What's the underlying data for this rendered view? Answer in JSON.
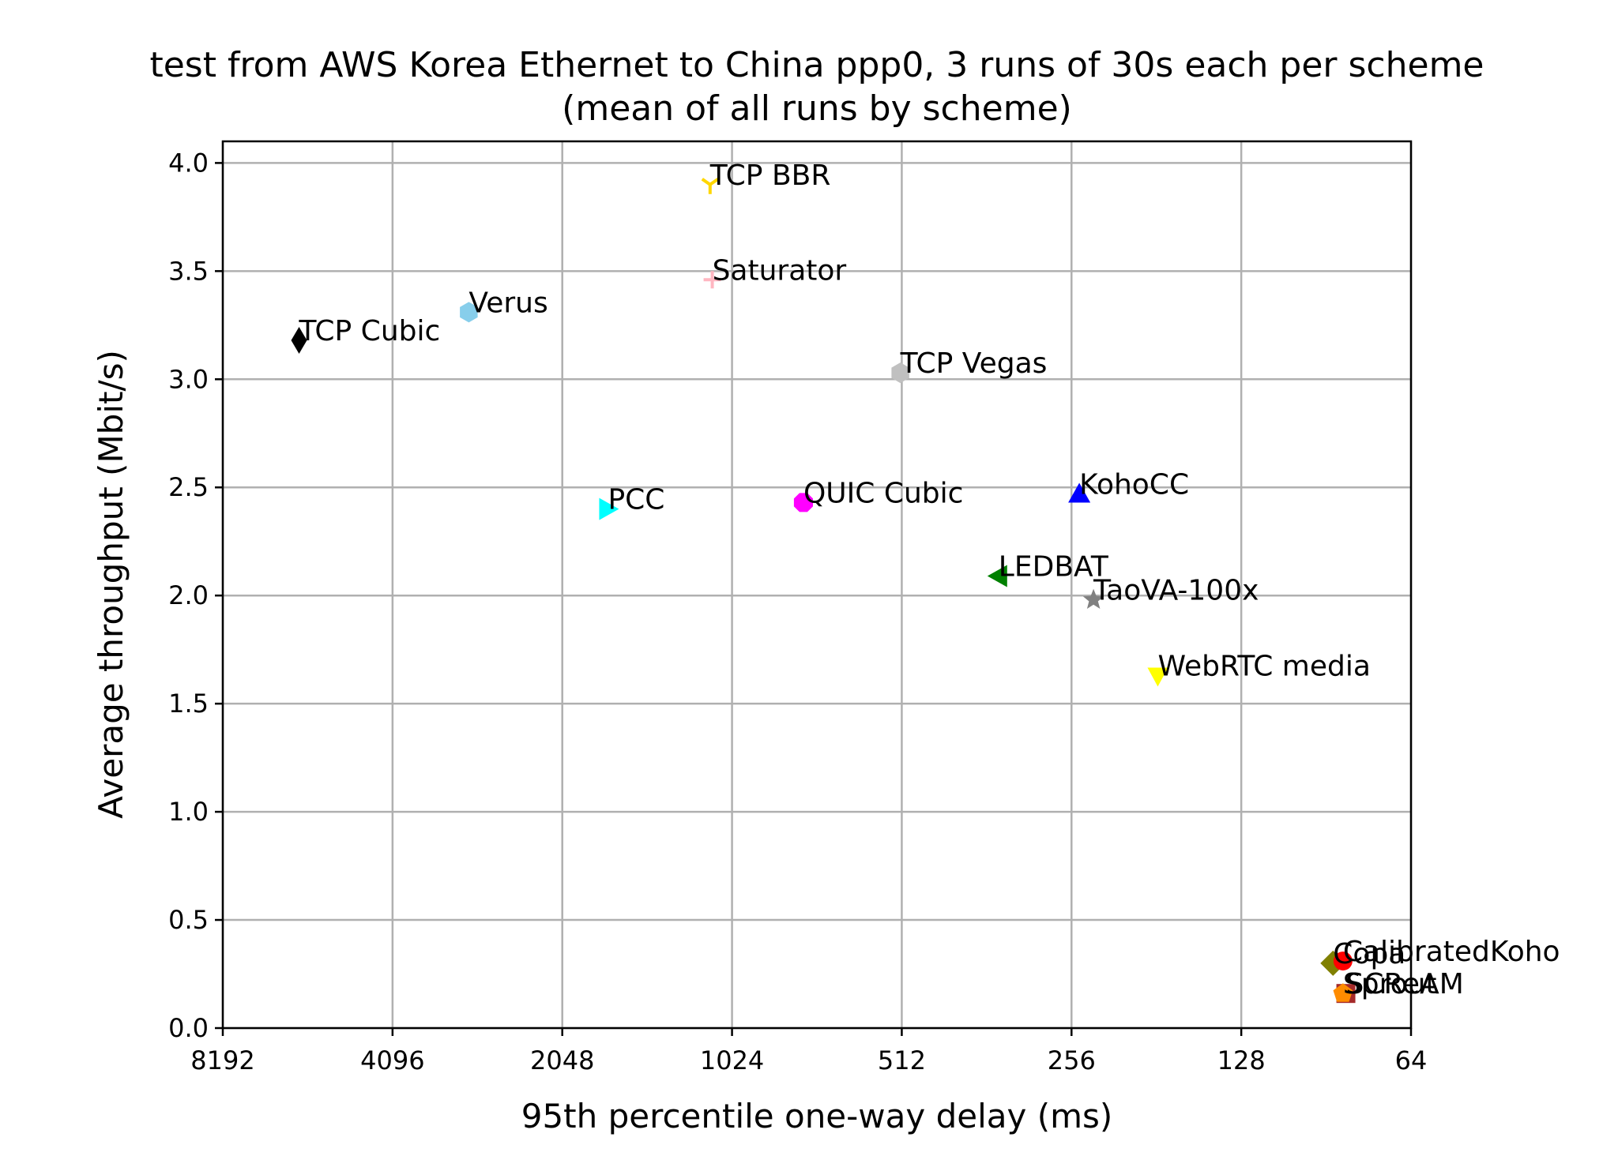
{
  "chart_data": {
    "type": "scatter",
    "title": "test from AWS Korea Ethernet to China ppp0, 3 runs of 30s each per scheme",
    "subtitle": "(mean of all runs by scheme)",
    "xlabel": "95th percentile one-way delay (ms)",
    "ylabel": "Average throughput (Mbit/s)",
    "x_scale": "log2",
    "x_inverted": true,
    "xlim": [
      8192,
      64
    ],
    "ylim": [
      0,
      4.1
    ],
    "xticks": [
      8192,
      4096,
      2048,
      1024,
      512,
      256,
      128,
      64
    ],
    "xtick_labels": [
      "8192",
      "4096",
      "2048",
      "1024",
      "512",
      "256",
      "128",
      "64"
    ],
    "yticks": [
      0,
      0.5,
      1,
      1.5,
      2,
      2.5,
      3,
      3.5,
      4
    ],
    "ytick_labels": [
      "0.0",
      "0.5",
      "1.0",
      "1.5",
      "2.0",
      "2.5",
      "3.0",
      "3.5",
      "4.0"
    ],
    "grid": true,
    "points": [
      {
        "label": "TCP BBR",
        "x": 1120,
        "y": 3.9,
        "marker": "tri_down",
        "color": "#ffd700"
      },
      {
        "label": "Saturator",
        "x": 1110,
        "y": 3.46,
        "marker": "plus",
        "color": "#ffb6c1"
      },
      {
        "label": "Verus",
        "x": 3000,
        "y": 3.31,
        "marker": "hexagon",
        "color": "#87ceeb"
      },
      {
        "label": "TCP Cubic",
        "x": 6000,
        "y": 3.18,
        "marker": "thin_diamond",
        "color": "#000000"
      },
      {
        "label": "TCP Vegas",
        "x": 515,
        "y": 3.03,
        "marker": "hexagon",
        "color": "#c0c0c0"
      },
      {
        "label": "KohoCC",
        "x": 248,
        "y": 2.47,
        "marker": "triangle_up",
        "color": "#0000ff"
      },
      {
        "label": "PCC",
        "x": 1700,
        "y": 2.4,
        "marker": "triangle_right",
        "color": "#00ffff"
      },
      {
        "label": "QUIC Cubic",
        "x": 765,
        "y": 2.43,
        "marker": "octagon",
        "color": "#ff00ff"
      },
      {
        "label": "LEDBAT",
        "x": 345,
        "y": 2.09,
        "marker": "triangle_left",
        "color": "#008000"
      },
      {
        "label": "TaoVA-100x",
        "x": 234,
        "y": 1.98,
        "marker": "star",
        "color": "#808080"
      },
      {
        "label": "WebRTC media",
        "x": 180,
        "y": 1.63,
        "marker": "triangle_down",
        "color": "#ffff00"
      },
      {
        "label": "Copa",
        "x": 88,
        "y": 0.3,
        "marker": "diamond",
        "color": "#808000"
      },
      {
        "label": "CalibratedKoho",
        "x": 84.5,
        "y": 0.31,
        "marker": "circle",
        "color": "#ff0000"
      },
      {
        "label": "SCReAM",
        "x": 83.5,
        "y": 0.16,
        "marker": "square",
        "color": "#a52a2a"
      },
      {
        "label": "Sprout",
        "x": 84.5,
        "y": 0.16,
        "marker": "pentagon",
        "color": "#ff8c00"
      }
    ]
  }
}
